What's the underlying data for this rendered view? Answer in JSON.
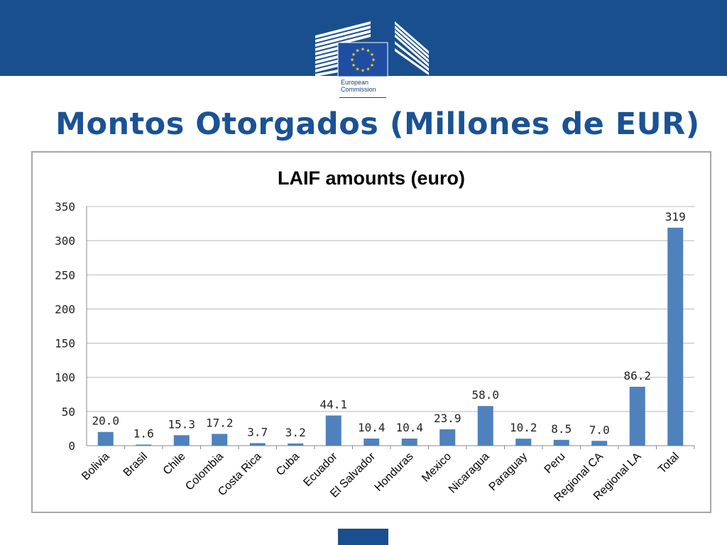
{
  "slide": {
    "title": "Montos Otorgados (Millones de EUR)",
    "logo_text": "European\nCommission",
    "colors": {
      "band": "#1a4f8f",
      "title": "#1a5294",
      "bar": "#4f81bd"
    }
  },
  "chart_data": {
    "type": "bar",
    "title": "LAIF amounts (euro)",
    "xlabel": "",
    "ylabel": "",
    "categories": [
      "Bolivia",
      "Brasil",
      "Chile",
      "Colombia",
      "Costa Rica",
      "Cuba",
      "Ecuador",
      "El Salvador",
      "Honduras",
      "Mexico",
      "Nicaragua",
      "Paraguay",
      "Peru",
      "Regional CA",
      "Regional LA",
      "Total"
    ],
    "values": [
      20.0,
      1.6,
      15.3,
      17.2,
      3.7,
      3.2,
      44.1,
      10.4,
      10.4,
      23.9,
      58.0,
      10.2,
      8.5,
      7.0,
      86.2,
      319
    ],
    "data_labels": [
      "20.0",
      "1.6",
      "15.3",
      "17.2",
      "3.7",
      "3.2",
      "44.1",
      "10.4",
      "10.4",
      "23.9",
      "58.0",
      "10.2",
      "8.5",
      "7.0",
      "86.2",
      "319"
    ],
    "ylim": [
      0,
      350
    ],
    "yticks": [
      0,
      50,
      100,
      150,
      200,
      250,
      300,
      350
    ],
    "grid": true,
    "legend": "none"
  }
}
